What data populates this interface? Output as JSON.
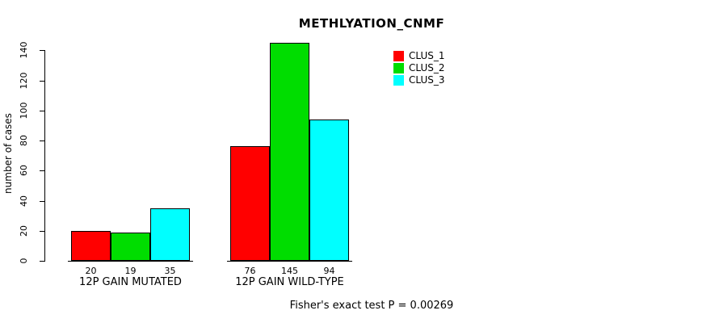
{
  "chart_data": {
    "type": "bar",
    "title": "METHLYATION_CNMF",
    "xlabel": "",
    "ylabel": "number of cases",
    "ylim": [
      0,
      145
    ],
    "yticks": [
      0,
      20,
      40,
      60,
      80,
      100,
      120,
      140
    ],
    "categories": [
      "12P GAIN MUTATED",
      "12P GAIN WILD-TYPE"
    ],
    "series": [
      {
        "name": "CLUS_1",
        "color": "#ff0000",
        "values": [
          20,
          76
        ]
      },
      {
        "name": "CLUS_2",
        "color": "#00dd00",
        "values": [
          19,
          145
        ]
      },
      {
        "name": "CLUS_3",
        "color": "#00ffff",
        "values": [
          35,
          94
        ]
      }
    ],
    "bar_value_labels": [
      [
        20,
        19,
        35
      ],
      [
        76,
        145,
        94
      ]
    ],
    "legend_position": "top-right",
    "grid": false,
    "annotation": "Fisher's exact test P = 0.00269"
  }
}
